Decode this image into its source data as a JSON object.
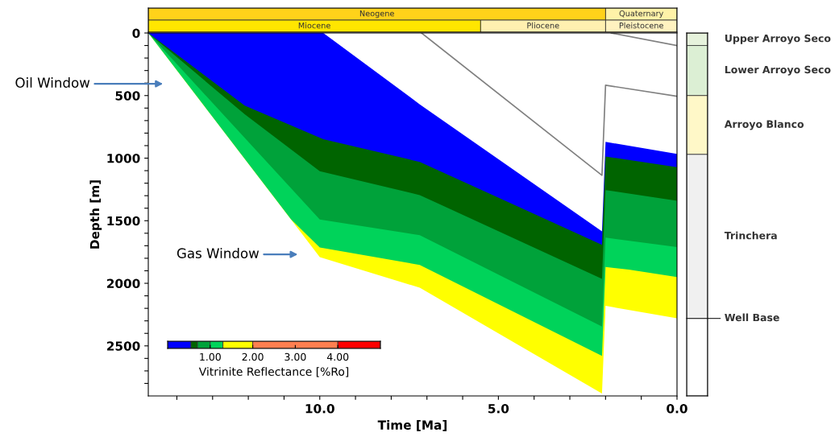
{
  "chart_data": [
    {
      "type": "bar",
      "orientation": "horizontal",
      "stacked": true,
      "categories": [
        null,
        null
      ],
      "xlim": [
        14.8,
        0
      ],
      "tick_labels": false,
      "series": [
        {
          "name": "Quaternary",
          "color": "#fff2a8",
          "values": [
            2.0,
            null
          ]
        },
        {
          "name": "Neogene",
          "color": "#ffd21a",
          "values": [
            12.8,
            null
          ]
        },
        {
          "name": "Pleistocene",
          "color": "#fff2c0",
          "values": [
            null,
            2.0
          ]
        },
        {
          "name": "Pliocene",
          "color": "#fff0b0",
          "values": [
            null,
            3.5
          ]
        },
        {
          "name": "Miocene",
          "color": "#ffe600",
          "values": [
            null,
            9.3
          ]
        }
      ]
    },
    {
      "type": "area",
      "xlabel": "Time [Ma]",
      "ylabel": "Depth [m]",
      "xlim": [
        14.8,
        0
      ],
      "ylim": [
        2900,
        0
      ],
      "xticks": [
        {
          "value": 14,
          "label": null
        },
        {
          "value": 13,
          "label": null
        },
        {
          "value": 12,
          "label": null
        },
        {
          "value": 11,
          "label": null
        },
        {
          "value": 10,
          "label": "10.0"
        },
        {
          "value": 9,
          "label": null
        },
        {
          "value": 8,
          "label": null
        },
        {
          "value": 7,
          "label": null
        },
        {
          "value": 6,
          "label": null
        },
        {
          "value": 5,
          "label": "5.0"
        },
        {
          "value": 4,
          "label": null
        },
        {
          "value": 3,
          "label": null
        },
        {
          "value": 2,
          "label": null
        },
        {
          "value": 1,
          "label": null
        },
        {
          "value": 0,
          "label": "0.0"
        }
      ],
      "yticks": [
        0,
        {
          "value": 100,
          "label": null
        },
        {
          "value": 200,
          "label": null
        },
        {
          "value": 300,
          "label": null
        },
        {
          "value": 400,
          "label": null
        },
        500,
        {
          "value": 600,
          "label": null
        },
        {
          "value": 700,
          "label": null
        },
        {
          "value": 800,
          "label": null
        },
        {
          "value": 900,
          "label": null
        },
        1000,
        {
          "value": 1100,
          "label": null
        },
        {
          "value": 1200,
          "label": null
        },
        {
          "value": 1300,
          "label": null
        },
        {
          "value": 1400,
          "label": null
        },
        1500,
        {
          "value": 1600,
          "label": null
        },
        {
          "value": 1700,
          "label": null
        },
        {
          "value": 1800,
          "label": null
        },
        {
          "value": 1900,
          "label": null
        },
        2000,
        {
          "value": 2100,
          "label": null
        },
        {
          "value": 2200,
          "label": null
        },
        {
          "value": 2300,
          "label": null
        },
        {
          "value": 2400,
          "label": null
        },
        2500,
        {
          "value": 2600,
          "label": null
        },
        {
          "value": 2700,
          "label": null
        },
        {
          "value": 2800,
          "label": null
        }
      ],
      "series": [
        {
          "color": "#ffff00",
          "x": [
            14.8,
            10.0,
            7.2,
            2.1,
            2.0,
            0
          ],
          "values": [
            0,
            1790,
            2035,
            2880,
            2180,
            2280
          ]
        },
        {
          "color": "#00d35a",
          "x": [
            14.8,
            10.8,
            10.0,
            7.2,
            2.1,
            2.0,
            1.35,
            0
          ],
          "values": [
            0,
            1490,
            1713,
            1853,
            2580,
            1870,
            1890,
            1950
          ]
        },
        {
          "color": "#00a23a",
          "x": [
            14.8,
            10.0,
            7.2,
            2.1,
            2.0,
            0
          ],
          "values": [
            0,
            1490,
            1615,
            2345,
            1635,
            1710
          ]
        },
        {
          "color": "#006400",
          "x": [
            14.8,
            12.1,
            10.0,
            7.2,
            2.1,
            2.0,
            0
          ],
          "values": [
            0,
            650,
            1105,
            1295,
            1965,
            1255,
            1340
          ]
        },
        {
          "color": "#0000ff",
          "x": [
            14.8,
            12.1,
            9.9,
            7.2,
            2.1,
            2.0,
            0
          ],
          "values": [
            0,
            580,
            848,
            1030,
            1692,
            987,
            1073
          ]
        },
        {
          "color": "#ffffff",
          "x": [
            14.8,
            9.9,
            7.2,
            2.1,
            2.0,
            0
          ],
          "values": [
            0,
            0,
            570,
            1585,
            870,
            966
          ]
        },
        {
          "type": "line",
          "color": "#808080",
          "x": [
            7.15,
            2.1,
            2.0,
            0
          ],
          "values": [
            0,
            1137,
            417,
            506
          ]
        },
        {
          "type": "line",
          "color": "#808080",
          "x": [
            1.84,
            0
          ],
          "values": [
            0,
            100
          ]
        }
      ],
      "annotations": [
        "Oil Window",
        "Gas Window"
      ]
    },
    {
      "type": "bar",
      "orientation": "horizontal",
      "stacked": true,
      "categories": [
        null
      ],
      "xlim": [
        0,
        5
      ],
      "tick_labels": "x",
      "xticks": [
        {
          "value": 1,
          "label": "1.00"
        },
        {
          "value": 2,
          "label": "2.00"
        },
        {
          "value": 3,
          "label": "3.00"
        },
        {
          "value": 4,
          "label": "4.00"
        }
      ],
      "xlabel": "Vitrinite Reflectance [%Ro]",
      "series": [
        {
          "color": "#0000ff",
          "values": [
            0.55
          ]
        },
        {
          "color": "#006400",
          "values": [
            0.15
          ]
        },
        {
          "color": "#00a23a",
          "values": [
            0.3
          ]
        },
        {
          "color": "#00d35a",
          "values": [
            0.3
          ]
        },
        {
          "color": "#ffff00",
          "values": [
            0.7
          ]
        },
        {
          "color": "#ff7f50",
          "values": [
            2.0
          ]
        },
        {
          "color": "#ff0000",
          "values": [
            1.0
          ]
        }
      ]
    },
    {
      "type": "bar",
      "stacked": true,
      "categories": [
        null
      ],
      "ylim": [
        2900,
        0
      ],
      "tick_labels": false,
      "series": [
        {
          "name": "Upper Arroyo Seco",
          "color": "#e6f2dc",
          "values": [
            100
          ]
        },
        {
          "name": "Lower Arroyo Seco",
          "color": "#dcefd4",
          "values": [
            400
          ]
        },
        {
          "name": "Arroyo Blanco",
          "color": "#fff8c8",
          "values": [
            470
          ]
        },
        {
          "name": "Trinchera",
          "color": "#f0f0f0",
          "values": [
            1310
          ]
        },
        {
          "color": "#ffffff",
          "values": [
            620
          ]
        }
      ],
      "ref_lines": [
        {
          "axis": "y",
          "value": 2280,
          "label": "Well Base"
        }
      ]
    }
  ]
}
